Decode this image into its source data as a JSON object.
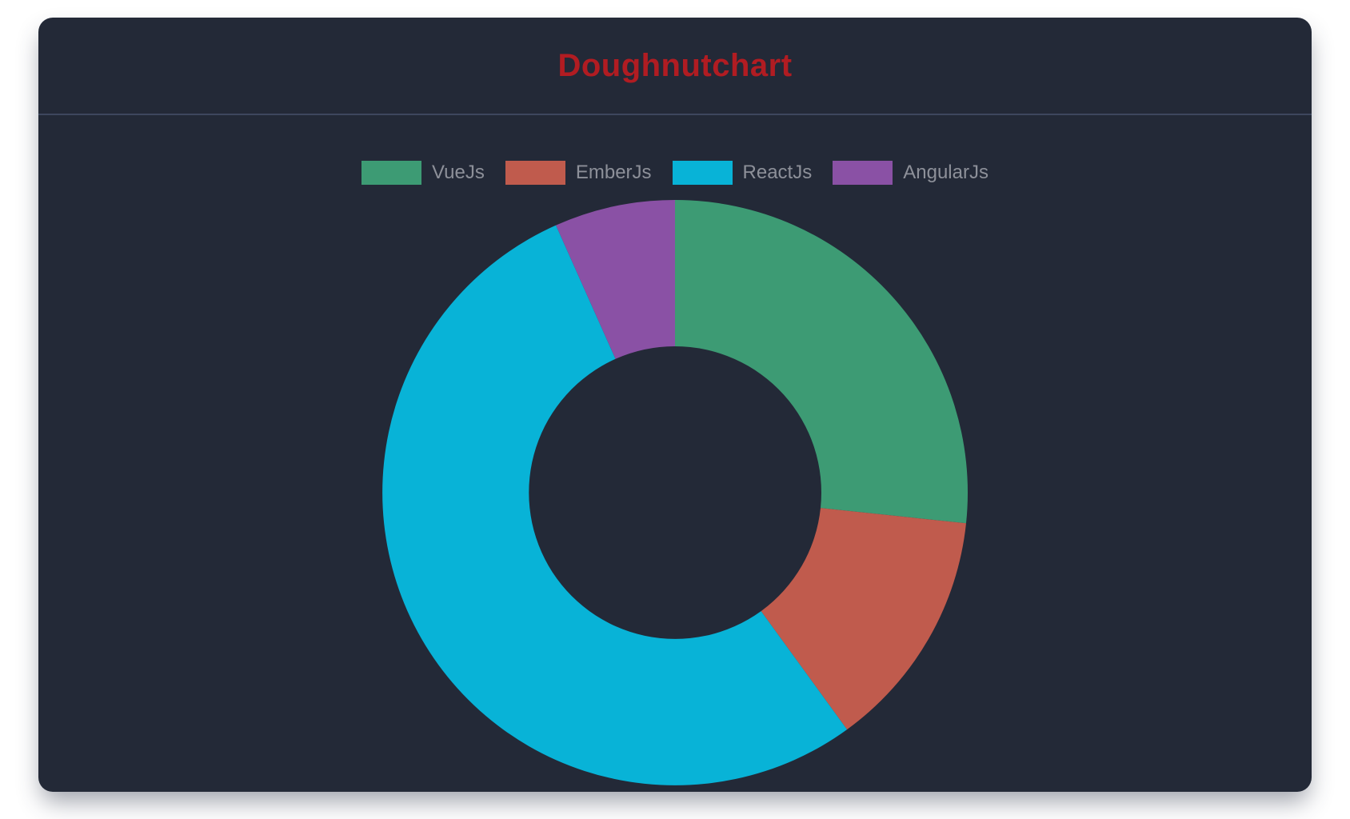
{
  "card": {
    "title": "Doughnutchart",
    "title_color": "#b11c22",
    "background": "#232937",
    "divider_color": "#3e465e"
  },
  "chart_data": {
    "type": "pie",
    "variant": "doughnut",
    "title": "Doughnutchart",
    "categories": [
      "VueJs",
      "EmberJs",
      "ReactJs",
      "AngularJs"
    ],
    "values": [
      40,
      20,
      80,
      10
    ],
    "colors": [
      "#3d9b74",
      "#c05b4d",
      "#08b3d7",
      "#8a51a5"
    ],
    "percentages": [
      26.7,
      13.3,
      53.3,
      6.7
    ],
    "start_angle_deg": 0,
    "direction": "clockwise",
    "cutout_percent": 50,
    "legend_position": "top",
    "legend_text_color": "#8d9099",
    "grid": false
  }
}
